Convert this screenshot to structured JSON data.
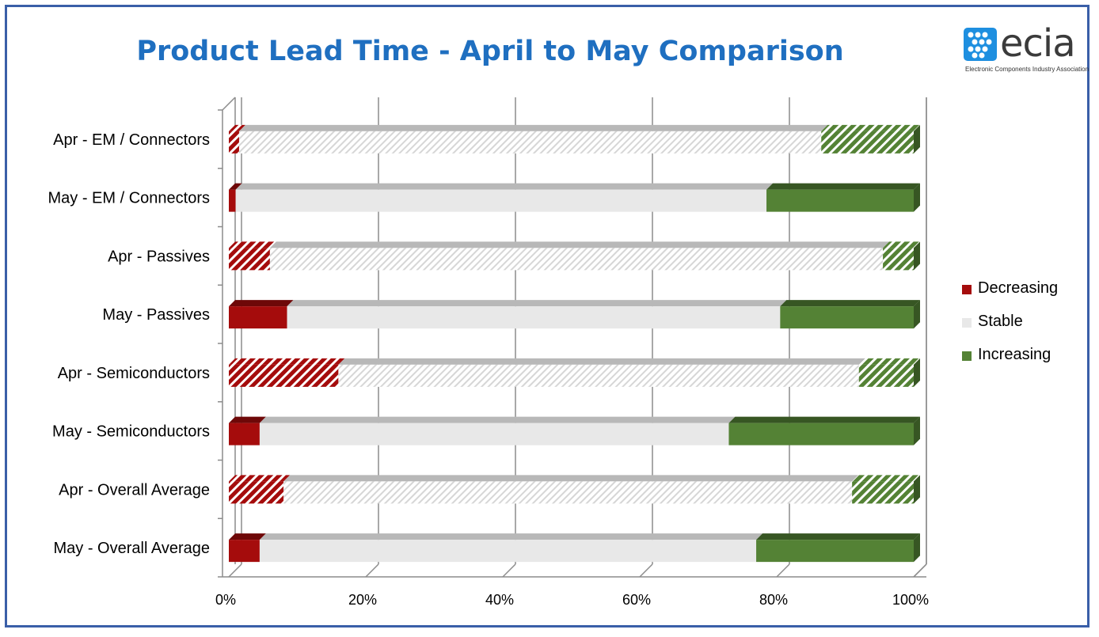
{
  "page": {
    "title": "Product Lead Time - April to May Comparison",
    "logo": {
      "name": "ecia",
      "tagline": "Electronic Components Industry Association"
    }
  },
  "colors": {
    "decreasing": "#a50c0c",
    "stable": "#e8e8e8",
    "increasing": "#548235",
    "frame": "#3a5fa8",
    "title": "#1f6fc0",
    "logo_blue": "#1e8fe0"
  },
  "chart_data": {
    "type": "bar",
    "orientation": "horizontal",
    "stacked": "100%",
    "three_d": true,
    "title": "Product Lead Time - April to May Comparison",
    "categories": [
      "Apr - EM / Connectors",
      "May - EM / Connectors",
      "Apr - Passives",
      "May - Passives",
      "Apr - Semiconductors",
      "May - Semiconductors",
      "Apr - Overall Average",
      "May - Overall Average"
    ],
    "patterned": [
      true,
      false,
      true,
      false,
      true,
      false,
      true,
      false
    ],
    "series": [
      {
        "name": "Decreasing",
        "color": "#a50c0c",
        "values": [
          1.5,
          1,
          6,
          8.5,
          16,
          4.5,
          8,
          4.5
        ]
      },
      {
        "name": "Stable",
        "color": "#e8e8e8",
        "values": [
          85,
          77.5,
          89.5,
          72,
          76,
          68.5,
          83,
          72.5
        ]
      },
      {
        "name": "Increasing",
        "color": "#548235",
        "values": [
          13.5,
          21.5,
          4.5,
          19.5,
          8,
          27,
          9,
          23
        ]
      }
    ],
    "xlim": [
      0,
      100
    ],
    "xticks": [
      "0%",
      "20%",
      "40%",
      "60%",
      "80%",
      "100%"
    ],
    "grid": true,
    "legend_position": "right"
  }
}
